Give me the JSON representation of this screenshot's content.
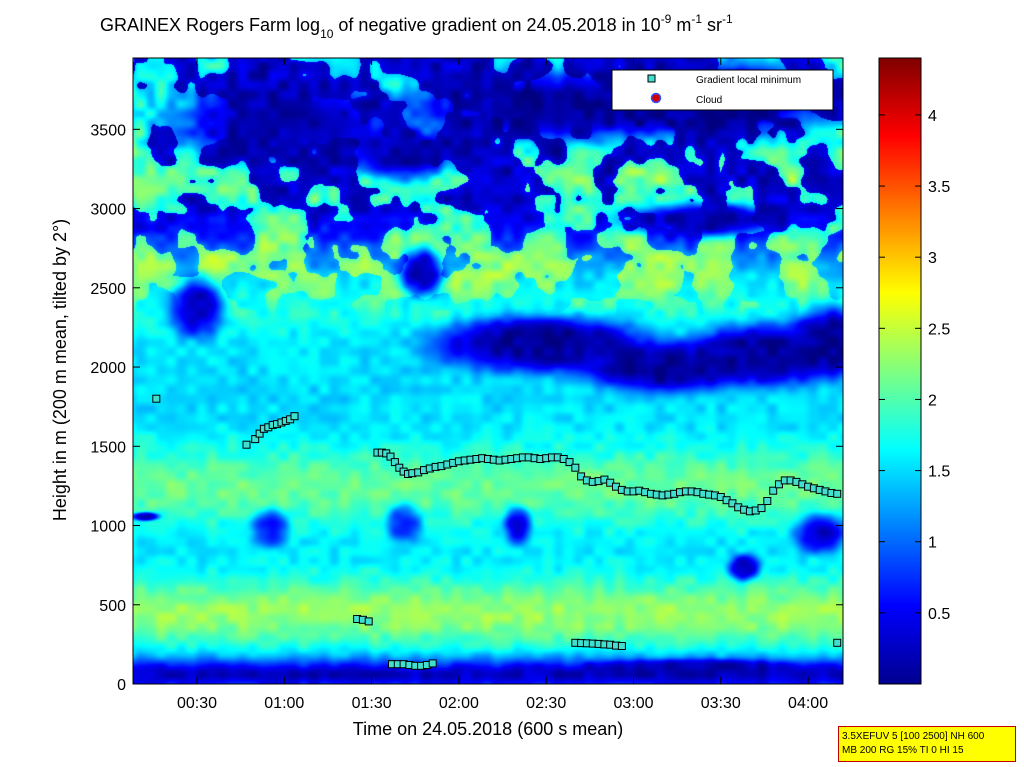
{
  "chart_data": {
    "type": "heatmap",
    "title": {
      "prefix": "GRAINEX Rogers Farm log",
      "log_base": "10",
      "middle": " of negative gradient on 24.05.2018 in 10",
      "exp1": "-9",
      "mid2": " m",
      "exp2": "-1",
      "mid3": " sr",
      "exp3": "-1"
    },
    "xlabel": "Time on 24.05.2018 (600 s mean)",
    "ylabel": "Height in m (200 m mean, tilted by 2°)",
    "x_range_min": [
      8,
      252
    ],
    "y_range_m": [
      0,
      3950
    ],
    "x_ticks": [
      {
        "label": "00:30",
        "min": 30
      },
      {
        "label": "01:00",
        "min": 60
      },
      {
        "label": "01:30",
        "min": 90
      },
      {
        "label": "02:00",
        "min": 120
      },
      {
        "label": "02:30",
        "min": 150
      },
      {
        "label": "03:00",
        "min": 180
      },
      {
        "label": "03:30",
        "min": 210
      },
      {
        "label": "04:00",
        "min": 240
      }
    ],
    "y_ticks": [
      0,
      500,
      1000,
      1500,
      2000,
      2500,
      3000,
      3500
    ],
    "colorbar": {
      "range": [
        0,
        4.4
      ],
      "colormap": "jet",
      "ticks": [
        {
          "label": "0.5",
          "v": 0.5
        },
        {
          "label": "1",
          "v": 1
        },
        {
          "label": "1.5",
          "v": 1.5
        },
        {
          "label": "2",
          "v": 2
        },
        {
          "label": "2.5",
          "v": 2.5
        },
        {
          "label": "3",
          "v": 3
        },
        {
          "label": "3.5",
          "v": 3.5
        },
        {
          "label": "4",
          "v": 4
        }
      ]
    },
    "legend": {
      "placement": "top-right",
      "entries": [
        {
          "label": "Gradient local minimum",
          "marker": "square",
          "color": "#40e0d0"
        },
        {
          "label": "Cloud",
          "marker": "circle",
          "color": "#d00000"
        }
      ]
    },
    "background_level": 1.5,
    "field_bands": [
      {
        "center_m": 70,
        "width_m": 110,
        "value": 0.2
      },
      {
        "center_m": 450,
        "width_m": 220,
        "value": 2.3
      },
      {
        "center_m": 1250,
        "width_m": 260,
        "value": 2.1
      },
      {
        "center_m": 2600,
        "width_m": 300,
        "value": 2.2
      },
      {
        "center_m": 3200,
        "width_m": 180,
        "value": 1.9
      }
    ],
    "field_blobs": [
      {
        "t": 148,
        "h": 2150,
        "rt": 40,
        "rh": 190,
        "value": 0.1
      },
      {
        "t": 190,
        "h": 2000,
        "rt": 28,
        "rh": 170,
        "value": 0.1
      },
      {
        "t": 225,
        "h": 2080,
        "rt": 28,
        "rh": 210,
        "value": 0.1
      },
      {
        "t": 248,
        "h": 2170,
        "rt": 15,
        "rh": 230,
        "value": 0.1
      },
      {
        "t": 107,
        "h": 2600,
        "rt": 8,
        "rh": 160,
        "value": 0.2
      },
      {
        "t": 160,
        "h": 3650,
        "rt": 60,
        "rh": 220,
        "value": 0.1
      },
      {
        "t": 60,
        "h": 3550,
        "rt": 40,
        "rh": 280,
        "value": 0.2
      },
      {
        "t": 210,
        "h": 3700,
        "rt": 40,
        "rh": 230,
        "value": 0.1
      },
      {
        "t": 100,
        "h": 3350,
        "rt": 20,
        "rh": 180,
        "value": 0.2
      },
      {
        "t": 205,
        "h": 2930,
        "rt": 30,
        "rh": 110,
        "value": 0.2
      },
      {
        "t": 30,
        "h": 2380,
        "rt": 10,
        "rh": 200,
        "value": 0.3
      },
      {
        "t": 12,
        "h": 1060,
        "rt": 5,
        "rh": 30,
        "value": 0.2
      },
      {
        "t": 218,
        "h": 740,
        "rt": 6,
        "rh": 90,
        "value": 0.3
      },
      {
        "t": 244,
        "h": 950,
        "rt": 9,
        "rh": 130,
        "value": 0.3
      },
      {
        "t": 140,
        "h": 1000,
        "rt": 5,
        "rh": 130,
        "value": 0.5
      },
      {
        "t": 55,
        "h": 980,
        "rt": 7,
        "rh": 130,
        "value": 0.7
      },
      {
        "t": 101,
        "h": 1010,
        "rt": 7,
        "rh": 130,
        "value": 0.8
      },
      {
        "t": 200,
        "h": 100,
        "rt": 40,
        "rh": 60,
        "value": 0.2
      }
    ],
    "series": [
      {
        "name": "Gradient local minimum",
        "marker": "square",
        "points": [
          [
            16,
            1800
          ],
          [
            47,
            1510
          ],
          [
            50,
            1545
          ],
          [
            51.5,
            1580
          ],
          [
            53,
            1610
          ],
          [
            54.5,
            1620
          ],
          [
            56,
            1635
          ],
          [
            57.5,
            1640
          ],
          [
            59,
            1650
          ],
          [
            60.5,
            1660
          ],
          [
            62,
            1670
          ],
          [
            63.5,
            1690
          ],
          [
            85,
            410
          ],
          [
            87,
            405
          ],
          [
            89,
            395
          ],
          [
            92,
            1460
          ],
          [
            93.5,
            1460
          ],
          [
            95,
            1455
          ],
          [
            96.5,
            1435
          ],
          [
            98,
            1400
          ],
          [
            99.5,
            1365
          ],
          [
            101,
            1340
          ],
          [
            102.5,
            1325
          ],
          [
            104,
            1330
          ],
          [
            106,
            1335
          ],
          [
            108,
            1350
          ],
          [
            110,
            1360
          ],
          [
            112,
            1370
          ],
          [
            114,
            1375
          ],
          [
            116,
            1385
          ],
          [
            118,
            1395
          ],
          [
            120,
            1405
          ],
          [
            122,
            1410
          ],
          [
            124,
            1415
          ],
          [
            126,
            1420
          ],
          [
            128,
            1425
          ],
          [
            130,
            1420
          ],
          [
            132,
            1415
          ],
          [
            134,
            1410
          ],
          [
            136,
            1415
          ],
          [
            138,
            1420
          ],
          [
            140,
            1425
          ],
          [
            142,
            1430
          ],
          [
            144,
            1430
          ],
          [
            146,
            1425
          ],
          [
            148,
            1420
          ],
          [
            150,
            1425
          ],
          [
            152,
            1430
          ],
          [
            154,
            1430
          ],
          [
            156,
            1420
          ],
          [
            158,
            1400
          ],
          [
            160,
            1365
          ],
          [
            162,
            1310
          ],
          [
            164,
            1285
          ],
          [
            166,
            1275
          ],
          [
            168,
            1280
          ],
          [
            170,
            1290
          ],
          [
            172,
            1270
          ],
          [
            174,
            1245
          ],
          [
            176,
            1225
          ],
          [
            178,
            1215
          ],
          [
            180,
            1215
          ],
          [
            182,
            1220
          ],
          [
            184,
            1210
          ],
          [
            186,
            1200
          ],
          [
            188,
            1195
          ],
          [
            190,
            1190
          ],
          [
            192,
            1195
          ],
          [
            194,
            1200
          ],
          [
            196,
            1210
          ],
          [
            198,
            1215
          ],
          [
            200,
            1215
          ],
          [
            202,
            1210
          ],
          [
            204,
            1200
          ],
          [
            206,
            1195
          ],
          [
            208,
            1190
          ],
          [
            210,
            1180
          ],
          [
            212,
            1160
          ],
          [
            214,
            1140
          ],
          [
            216,
            1115
          ],
          [
            218,
            1100
          ],
          [
            220,
            1090
          ],
          [
            222,
            1095
          ],
          [
            224,
            1110
          ],
          [
            226,
            1155
          ],
          [
            228,
            1220
          ],
          [
            230,
            1260
          ],
          [
            232,
            1285
          ],
          [
            234,
            1285
          ],
          [
            236,
            1275
          ],
          [
            238,
            1260
          ],
          [
            240,
            1245
          ],
          [
            242,
            1235
          ],
          [
            244,
            1225
          ],
          [
            246,
            1215
          ],
          [
            248,
            1205
          ],
          [
            250,
            1200
          ],
          [
            97,
            125
          ],
          [
            99,
            125
          ],
          [
            101,
            125
          ],
          [
            103,
            120
          ],
          [
            105,
            115
          ],
          [
            107,
            115
          ],
          [
            109,
            120
          ],
          [
            111,
            130
          ],
          [
            160,
            260
          ],
          [
            162,
            258
          ],
          [
            164,
            257
          ],
          [
            166,
            255
          ],
          [
            168,
            253
          ],
          [
            170,
            250
          ],
          [
            172,
            248
          ],
          [
            174,
            242
          ],
          [
            176,
            240
          ],
          [
            250,
            260
          ]
        ]
      }
    ]
  },
  "info_box": {
    "line1": "3.5XEFUV 5 [100 2500] NH 600",
    "line2": "MB 200 RG 15% TI 0 HI 15"
  }
}
